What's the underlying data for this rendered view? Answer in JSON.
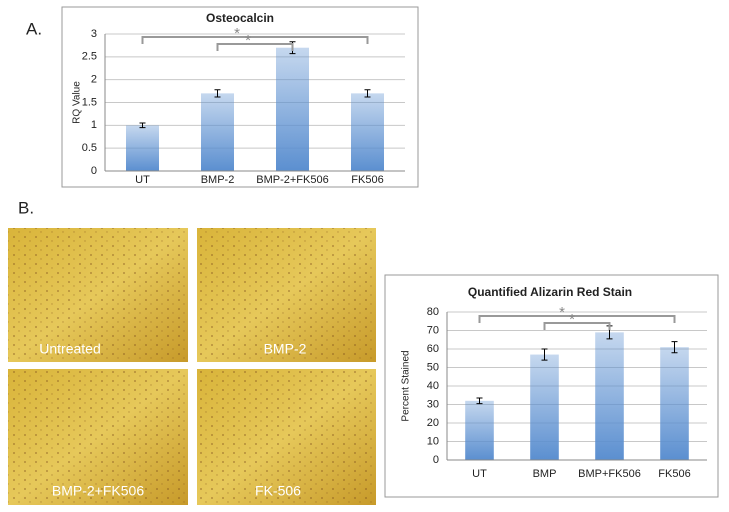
{
  "panel_labels": [
    "A.",
    "B."
  ],
  "images": [
    "Untreated",
    "BMP-2",
    "BMP-2+FK506",
    "FK-506"
  ],
  "chart_data": [
    {
      "type": "bar",
      "title": "Osteocalcin",
      "y_label": "RQ Value",
      "categories": [
        "UT",
        "BMP-2",
        "BMP-2+FK506",
        "FK506"
      ],
      "values": [
        1,
        1.7,
        2.7,
        1.7
      ],
      "errors": [
        0.05,
        0.08,
        0.13,
        0.08
      ],
      "color": "#5b8fd0",
      "ylim": [
        0,
        3
      ],
      "yticks": [
        0,
        0.5,
        1,
        1.5,
        2,
        2.5,
        3
      ],
      "grid": true,
      "annotations": [
        "*",
        "*"
      ]
    },
    {
      "type": "bar",
      "title": "Quantified Alizarin Red Stain",
      "y_label": "Percent Stained",
      "categories": [
        "UT",
        "BMP",
        "BMP+FK506",
        "FK506"
      ],
      "values": [
        32,
        57,
        69,
        61
      ],
      "errors": [
        1.5,
        3,
        3.5,
        3
      ],
      "color": "#5b8fd0",
      "ylim": [
        0,
        80
      ],
      "yticks": [
        0,
        10,
        20,
        30,
        40,
        50,
        60,
        70,
        80
      ],
      "grid": true,
      "annotations": [
        "*",
        "*"
      ]
    }
  ]
}
